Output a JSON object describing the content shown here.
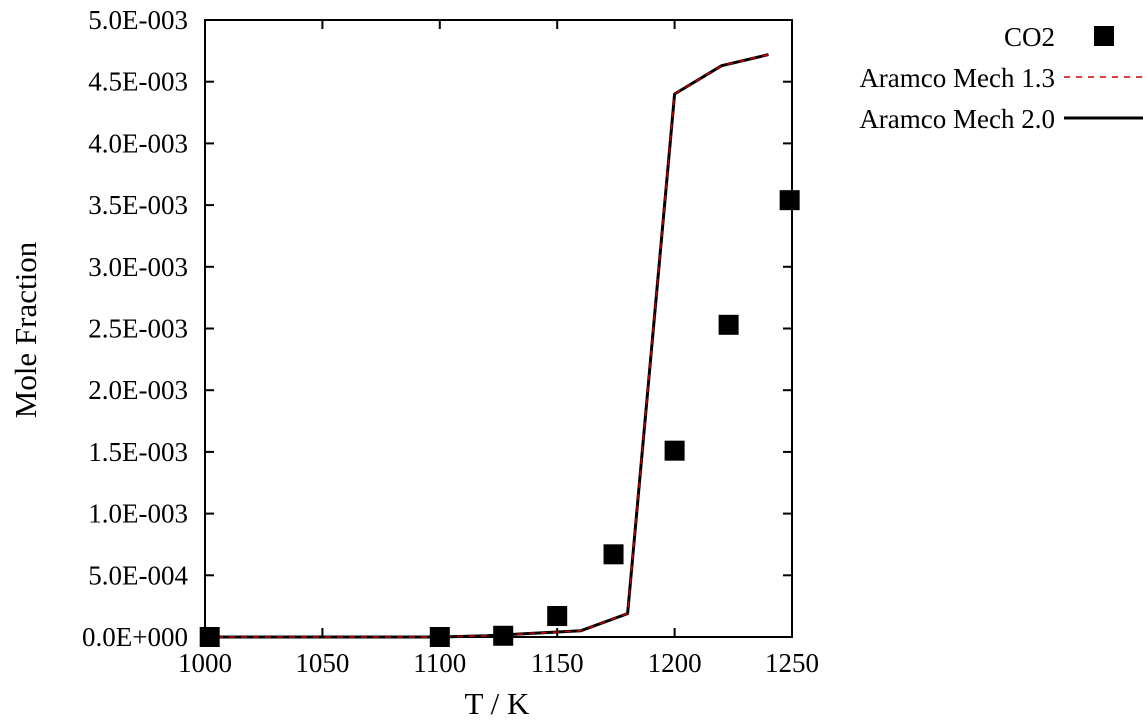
{
  "chart_data": {
    "type": "scatter",
    "title": "",
    "xlabel": "T / K",
    "ylabel": "Mole Fraction",
    "xlim": [
      1000,
      1250
    ],
    "ylim": [
      0,
      0.005
    ],
    "grid": false,
    "legend_position": "outside-top-right",
    "x_ticks": [
      {
        "value": 1000,
        "label": "1000"
      },
      {
        "value": 1050,
        "label": "1050"
      },
      {
        "value": 1100,
        "label": "1100"
      },
      {
        "value": 1150,
        "label": "1150"
      },
      {
        "value": 1200,
        "label": "1200"
      },
      {
        "value": 1250,
        "label": "1250"
      }
    ],
    "y_ticks": [
      {
        "value": 0.0,
        "label": "0.0E+000"
      },
      {
        "value": 0.0005,
        "label": "5.0E-004"
      },
      {
        "value": 0.001,
        "label": "1.0E-003"
      },
      {
        "value": 0.0015,
        "label": "1.5E-003"
      },
      {
        "value": 0.002,
        "label": "2.0E-003"
      },
      {
        "value": 0.0025,
        "label": "2.5E-003"
      },
      {
        "value": 0.003,
        "label": "3.0E-003"
      },
      {
        "value": 0.0035,
        "label": "3.5E-003"
      },
      {
        "value": 0.004,
        "label": "4.0E-003"
      },
      {
        "value": 0.0045,
        "label": "4.5E-003"
      },
      {
        "value": 0.005,
        "label": "5.0E-003"
      }
    ],
    "series": [
      {
        "name": "CO2",
        "style": "markers",
        "marker": "square",
        "color": "#000000",
        "x": [
          1002,
          1100,
          1127,
          1150,
          1174,
          1200,
          1223,
          1249
        ],
        "y": [
          0.0,
          0.0,
          1e-05,
          0.00017,
          0.00067,
          0.00151,
          0.00253,
          0.00354
        ]
      },
      {
        "name": "Aramco Mech 1.3",
        "style": "dashed",
        "color": "#cc0000",
        "x": [
          1000,
          1100,
          1120,
          1140,
          1160,
          1180,
          1200,
          1220,
          1240
        ],
        "y": [
          0.0,
          0.0,
          1e-05,
          3e-05,
          5e-05,
          0.00019,
          0.0044,
          0.00463,
          0.00472
        ]
      },
      {
        "name": "Aramco Mech 2.0",
        "style": "solid",
        "color": "#000000",
        "x": [
          1000,
          1100,
          1120,
          1140,
          1160,
          1180,
          1200,
          1220,
          1240
        ],
        "y": [
          0.0,
          0.0,
          1e-05,
          3e-05,
          5e-05,
          0.00019,
          0.0044,
          0.00463,
          0.00472
        ]
      }
    ]
  }
}
